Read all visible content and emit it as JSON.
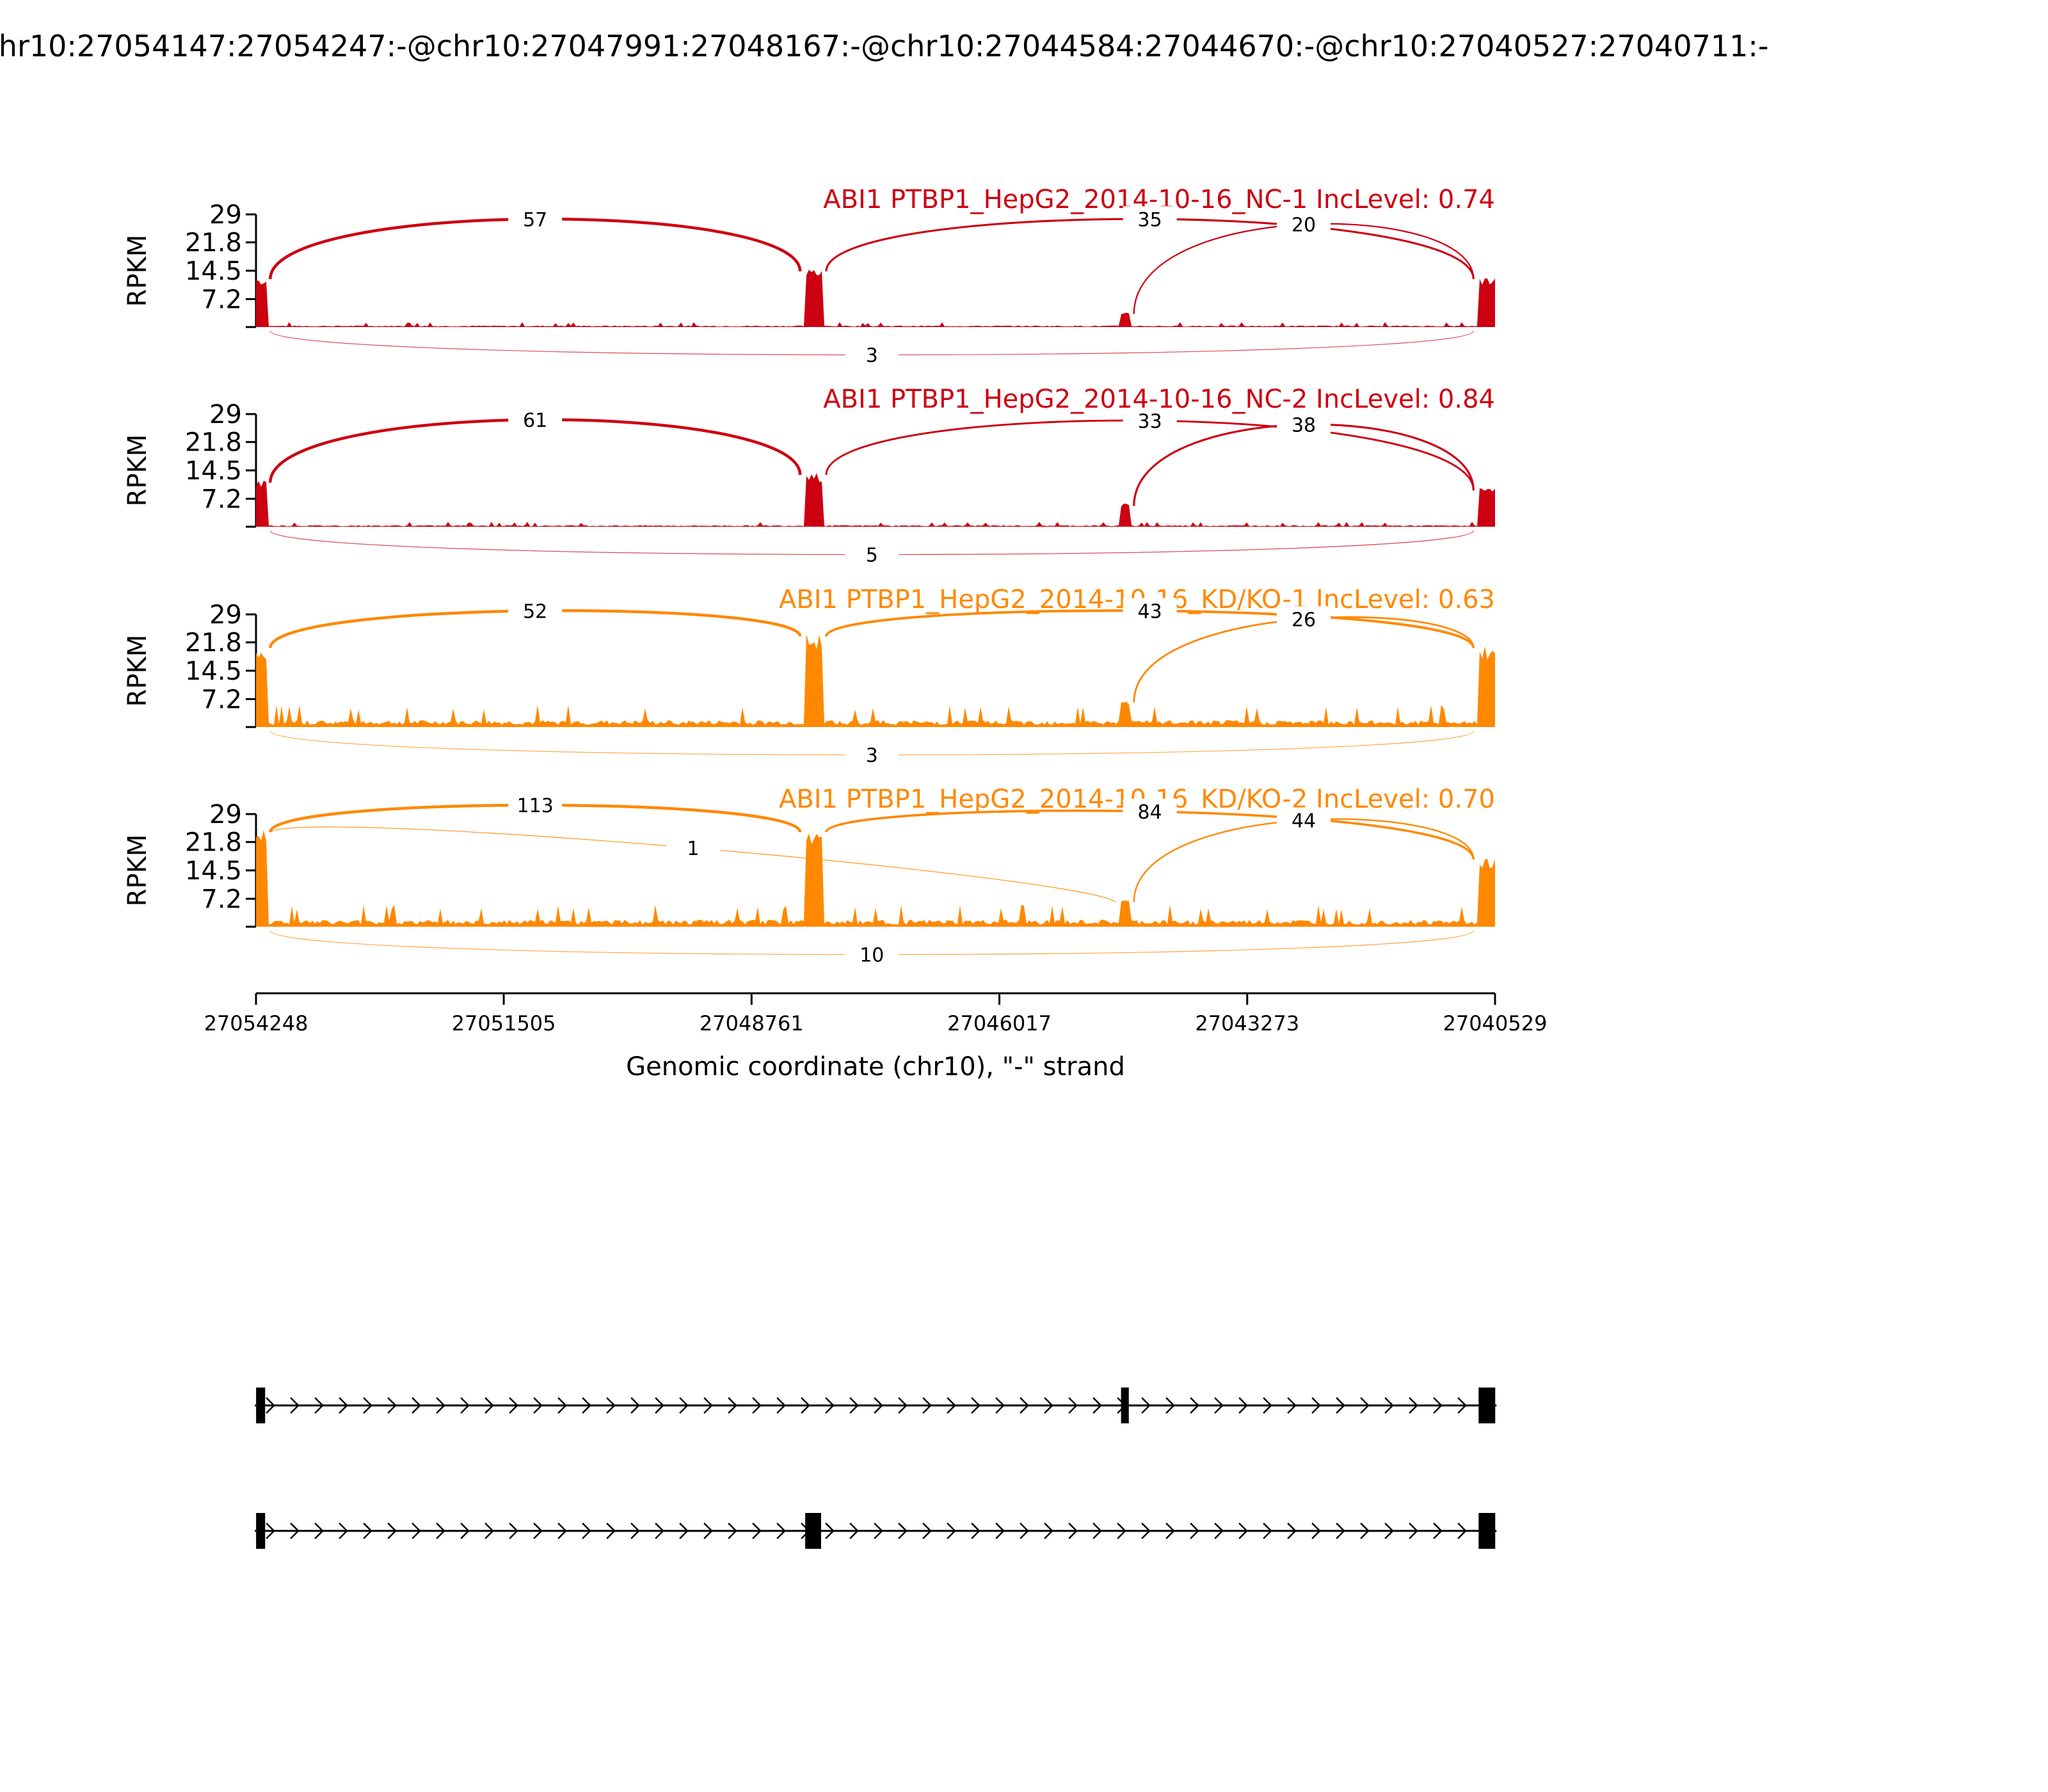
{
  "figure_title": "chr10:27054147:27054247:-@chr10:27047991:27048167:-@chr10:27044584:27044670:-@chr10:27040527:27040711:-",
  "chart_data": {
    "type": "area",
    "subtype": "sashimi",
    "strand": "-",
    "xlabel": "Genomic coordinate (chr10), \"-\" strand",
    "ylabel": "RPKM",
    "xlim": [
      27054248,
      27040529
    ],
    "ylim": [
      0,
      29
    ],
    "x_ticks": [
      "27054248",
      "27051505",
      "27048761",
      "27046017",
      "27043273",
      "27040529"
    ],
    "y_ticks": [
      "29",
      "21.8",
      "14.5",
      "7.2"
    ],
    "y_tick_values": [
      29,
      21.8,
      14.5,
      7.2
    ],
    "exons": [
      {
        "start": 27054147,
        "end": 27054247
      },
      {
        "start": 27047991,
        "end": 27048167
      },
      {
        "start": 27044584,
        "end": 27044670
      },
      {
        "start": 27040527,
        "end": 27040711
      }
    ],
    "tracks": [
      {
        "label": "ABI1 PTBP1_HepG2_2014-10-16_NC-1 IncLevel: 0.74",
        "color": "#cc0011",
        "exon_heights": [
          13,
          15,
          4,
          13
        ],
        "intron_level": 0.4,
        "junctions": [
          {
            "from": 27054147,
            "to": 27048167,
            "count": "57",
            "side": "above"
          },
          {
            "from": 27047991,
            "to": 27040711,
            "count": "35",
            "side": "above"
          },
          {
            "from": 27044584,
            "to": 27040711,
            "count": "20",
            "side": "above"
          },
          {
            "from": 27054147,
            "to": 27040711,
            "count": "3",
            "side": "below"
          }
        ]
      },
      {
        "label": "ABI1 PTBP1_HepG2_2014-10-16_NC-2 IncLevel: 0.84",
        "color": "#cc0011",
        "exon_heights": [
          12,
          14,
          6,
          10
        ],
        "intron_level": 0.4,
        "junctions": [
          {
            "from": 27054147,
            "to": 27048167,
            "count": "61",
            "side": "above"
          },
          {
            "from": 27047991,
            "to": 27040711,
            "count": "33",
            "side": "above"
          },
          {
            "from": 27044584,
            "to": 27040711,
            "count": "38",
            "side": "above"
          },
          {
            "from": 27054147,
            "to": 27040711,
            "count": "5",
            "side": "below"
          }
        ]
      },
      {
        "label": "ABI1 PTBP1_HepG2_2014-10-16_KD/KO-1 IncLevel: 0.63",
        "color": "#ff8800",
        "exon_heights": [
          21,
          24,
          7,
          21
        ],
        "intron_level": 1.8,
        "junctions": [
          {
            "from": 27054147,
            "to": 27048167,
            "count": "52",
            "side": "above"
          },
          {
            "from": 27047991,
            "to": 27040711,
            "count": "43",
            "side": "above"
          },
          {
            "from": 27044584,
            "to": 27040711,
            "count": "26",
            "side": "above"
          },
          {
            "from": 27054147,
            "to": 27040711,
            "count": "3",
            "side": "below"
          }
        ]
      },
      {
        "label": "ABI1 PTBP1_HepG2_2014-10-16_KD/KO-2 IncLevel: 0.70",
        "color": "#ff8800",
        "exon_heights": [
          25,
          25,
          7,
          18
        ],
        "intron_level": 1.8,
        "junctions": [
          {
            "from": 27054147,
            "to": 27048167,
            "count": "113",
            "side": "above"
          },
          {
            "from": 27054147,
            "to": 27044670,
            "count": "1",
            "side": "above"
          },
          {
            "from": 27047991,
            "to": 27040711,
            "count": "84",
            "side": "above"
          },
          {
            "from": 27044584,
            "to": 27040711,
            "count": "44",
            "side": "above"
          },
          {
            "from": 27054147,
            "to": 27040711,
            "count": "10",
            "side": "below"
          }
        ]
      }
    ],
    "isoforms": [
      {
        "exons": [
          [
            27054147,
            27054247
          ],
          [
            27044584,
            27044670
          ],
          [
            27040527,
            27040711
          ]
        ]
      },
      {
        "exons": [
          [
            27054147,
            27054247
          ],
          [
            27047991,
            27048167
          ],
          [
            27040527,
            27040711
          ]
        ]
      }
    ]
  }
}
